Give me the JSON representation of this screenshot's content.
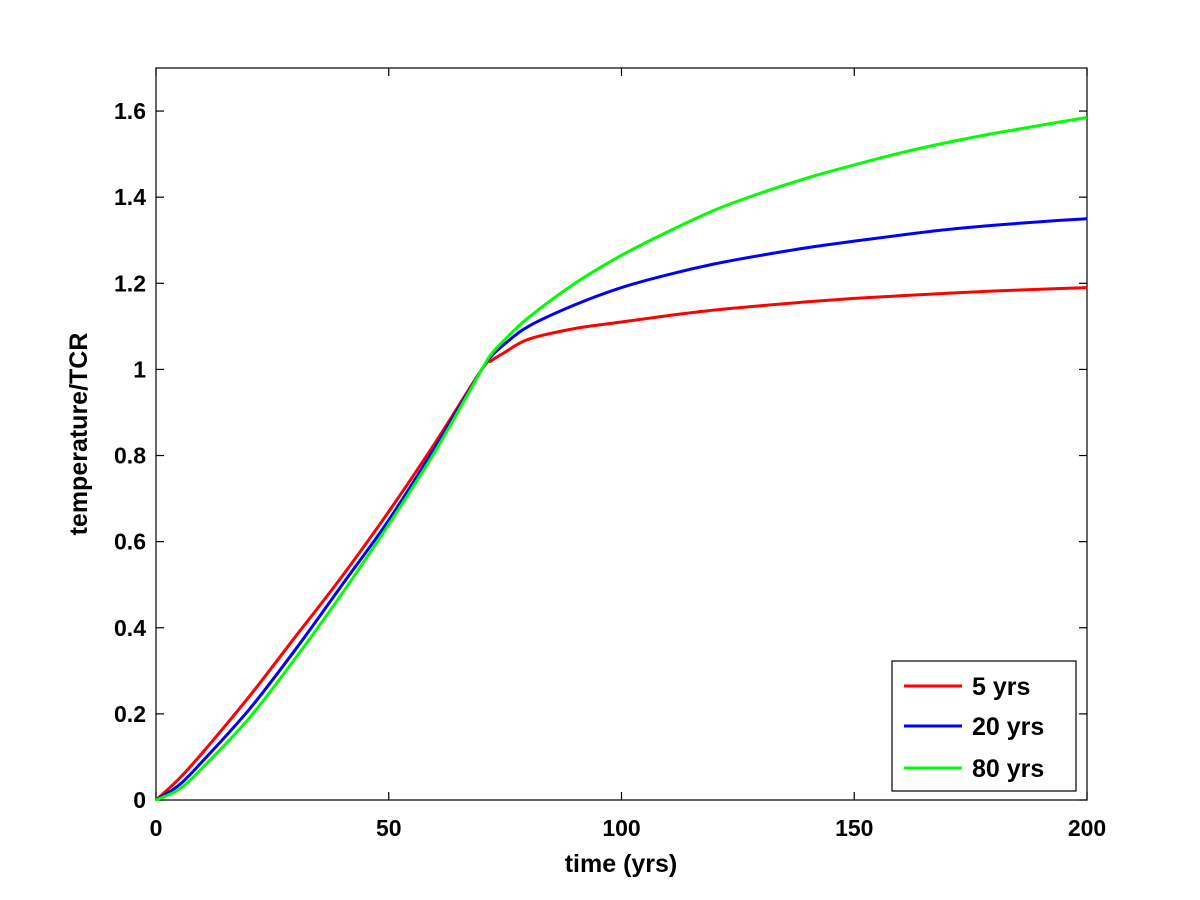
{
  "chart_data": {
    "type": "line",
    "title": "",
    "xlabel": "time (yrs)",
    "ylabel": "temperature/TCR",
    "xlim": [
      0,
      200
    ],
    "ylim": [
      0,
      1.7
    ],
    "xticks": [
      0,
      50,
      100,
      150,
      200
    ],
    "yticks": [
      0,
      0.2,
      0.4,
      0.6,
      0.8,
      1,
      1.2,
      1.4,
      1.6
    ],
    "xtick_labels": [
      "0",
      "50",
      "100",
      "150",
      "200"
    ],
    "ytick_labels": [
      "0",
      "0.2",
      "0.4",
      "0.6",
      "0.8",
      "1",
      "1.2",
      "1.4",
      "1.6"
    ],
    "grid": false,
    "legend_position": "bottom-right",
    "series": [
      {
        "name": "5 yrs",
        "color": "#ff0000",
        "x": [
          0,
          5,
          10,
          20,
          30,
          40,
          50,
          60,
          70,
          72,
          75,
          80,
          90,
          100,
          110,
          120,
          130,
          140,
          150,
          160,
          170,
          180,
          190,
          200
        ],
        "y": [
          0,
          0.05,
          0.11,
          0.24,
          0.38,
          0.52,
          0.67,
          0.83,
          1.0,
          1.02,
          1.04,
          1.07,
          1.095,
          1.11,
          1.125,
          1.138,
          1.148,
          1.157,
          1.165,
          1.171,
          1.177,
          1.182,
          1.186,
          1.19
        ]
      },
      {
        "name": "20 yrs",
        "color": "#0000ff",
        "x": [
          0,
          5,
          10,
          20,
          30,
          40,
          50,
          60,
          70,
          72,
          75,
          80,
          90,
          100,
          110,
          120,
          130,
          140,
          150,
          160,
          170,
          180,
          190,
          200
        ],
        "y": [
          0,
          0.035,
          0.09,
          0.21,
          0.35,
          0.5,
          0.65,
          0.82,
          1.0,
          1.03,
          1.06,
          1.1,
          1.15,
          1.19,
          1.22,
          1.245,
          1.265,
          1.283,
          1.298,
          1.312,
          1.325,
          1.335,
          1.343,
          1.35
        ]
      },
      {
        "name": "80 yrs",
        "color": "#00ff00",
        "x": [
          0,
          5,
          10,
          20,
          30,
          40,
          50,
          60,
          70,
          72,
          75,
          80,
          90,
          100,
          110,
          120,
          130,
          140,
          150,
          160,
          170,
          180,
          190,
          200
        ],
        "y": [
          0,
          0.025,
          0.075,
          0.19,
          0.33,
          0.48,
          0.64,
          0.81,
          1.0,
          1.035,
          1.07,
          1.12,
          1.2,
          1.265,
          1.32,
          1.37,
          1.41,
          1.445,
          1.475,
          1.503,
          1.527,
          1.548,
          1.567,
          1.585
        ]
      }
    ]
  }
}
